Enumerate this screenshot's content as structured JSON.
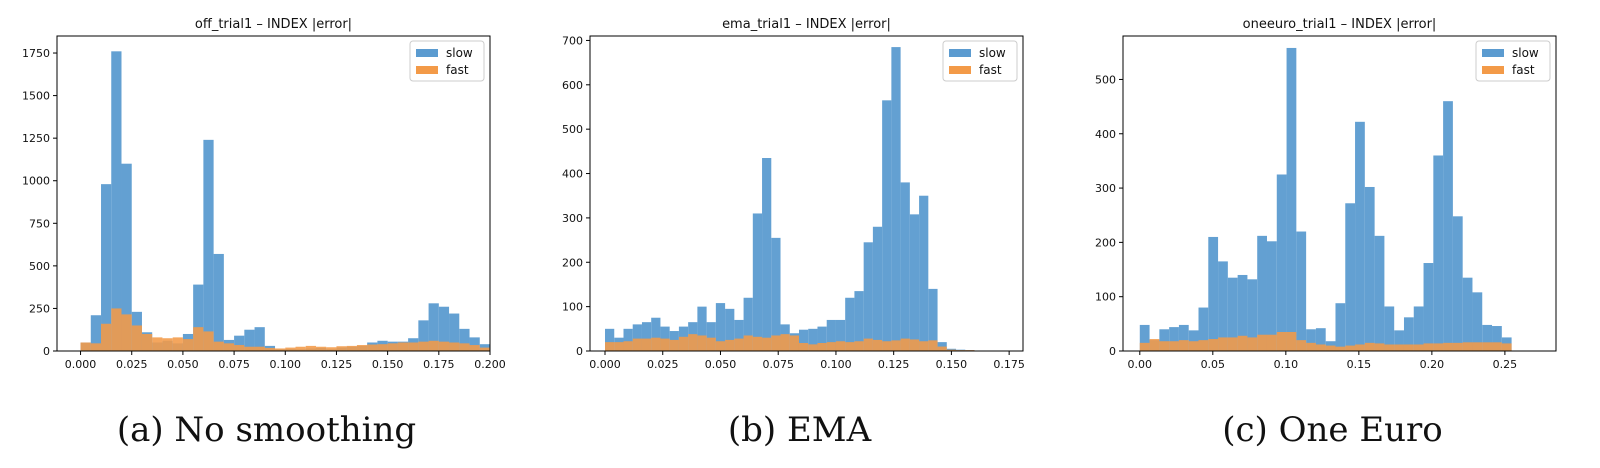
{
  "colors": {
    "slow": "#5b9bd0",
    "fast": "#f39a48",
    "slow_edge": "#5b9bd0",
    "fast_edge": "#f39a48"
  },
  "chart_data": [
    {
      "type": "bar",
      "title": "off_trial1 – INDEX |error|",
      "caption": "(a) No smoothing",
      "x_bin_width": 0.005,
      "xlim": [
        -0.0115,
        0.2
      ],
      "ylim": [
        0,
        1850
      ],
      "xticks": [
        0.0,
        0.025,
        0.05,
        0.075,
        0.1,
        0.125,
        0.15,
        0.175,
        0.2
      ],
      "xticklabels": [
        "0.000",
        "0.025",
        "0.050",
        "0.075",
        "0.100",
        "0.125",
        "0.150",
        "0.175",
        "0.200"
      ],
      "yticks": [
        0,
        250,
        500,
        750,
        1000,
        1250,
        1500,
        1750
      ],
      "yticklabels": [
        "0",
        "250",
        "500",
        "750",
        "1000",
        "1250",
        "1500",
        "1750"
      ],
      "legend": "top-right",
      "series": [
        {
          "name": "slow",
          "x0": 0.0,
          "values": [
            50,
            210,
            980,
            1760,
            1100,
            230,
            110,
            50,
            60,
            45,
            100,
            390,
            1240,
            570,
            65,
            90,
            125,
            140,
            30,
            10,
            12,
            10,
            15,
            18,
            10,
            20,
            25,
            30,
            50,
            60,
            55,
            55,
            75,
            180,
            280,
            260,
            220,
            130,
            80,
            40
          ]
        },
        {
          "name": "fast",
          "x0": 0.0,
          "values": [
            50,
            45,
            160,
            250,
            215,
            150,
            100,
            80,
            75,
            80,
            70,
            140,
            115,
            55,
            45,
            35,
            25,
            25,
            18,
            15,
            20,
            25,
            30,
            25,
            22,
            28,
            30,
            35,
            38,
            40,
            45,
            50,
            50,
            55,
            60,
            55,
            50,
            45,
            35,
            20
          ]
        }
      ]
    },
    {
      "type": "bar",
      "title": "ema_trial1 – INDEX |error|",
      "caption": "(b) EMA",
      "x_bin_width": 0.004,
      "xlim": [
        -0.0065,
        0.181
      ],
      "ylim": [
        0,
        710
      ],
      "xticks": [
        0.0,
        0.025,
        0.05,
        0.075,
        0.1,
        0.125,
        0.15,
        0.175
      ],
      "xticklabels": [
        "0.000",
        "0.025",
        "0.050",
        "0.075",
        "0.100",
        "0.125",
        "0.150",
        "0.175"
      ],
      "yticks": [
        0,
        100,
        200,
        300,
        400,
        500,
        600,
        700
      ],
      "yticklabels": [
        "0",
        "100",
        "200",
        "300",
        "400",
        "500",
        "600",
        "700"
      ],
      "legend": "top-right",
      "series": [
        {
          "name": "slow",
          "x0": 0.0,
          "values": [
            50,
            30,
            50,
            60,
            65,
            75,
            55,
            45,
            55,
            65,
            100,
            65,
            108,
            95,
            70,
            120,
            310,
            435,
            255,
            60,
            40,
            48,
            50,
            55,
            70,
            70,
            120,
            135,
            245,
            280,
            565,
            685,
            380,
            308,
            350,
            140,
            20,
            5,
            3,
            2
          ]
        },
        {
          "name": "fast",
          "x0": 0.0,
          "values": [
            20,
            20,
            22,
            28,
            28,
            30,
            28,
            25,
            32,
            38,
            35,
            30,
            22,
            25,
            28,
            35,
            32,
            30,
            35,
            38,
            35,
            18,
            15,
            18,
            20,
            22,
            20,
            22,
            28,
            25,
            22,
            24,
            28,
            26,
            22,
            24,
            10,
            3,
            2,
            2
          ]
        }
      ]
    },
    {
      "type": "bar",
      "title": "oneeuro_trial1 – INDEX |error|",
      "caption": "(c) One Euro",
      "x_bin_width": 0.0067,
      "xlim": [
        -0.0115,
        0.285
      ],
      "ylim": [
        0,
        580
      ],
      "xticks": [
        0.0,
        0.05,
        0.1,
        0.15,
        0.2,
        0.25
      ],
      "xticklabels": [
        "0.00",
        "0.05",
        "0.10",
        "0.15",
        "0.20",
        "0.25"
      ],
      "yticks": [
        0,
        100,
        200,
        300,
        400,
        500
      ],
      "yticklabels": [
        "0",
        "100",
        "200",
        "300",
        "400",
        "500"
      ],
      "legend": "top-right",
      "series": [
        {
          "name": "slow",
          "x0": 0.0,
          "values": [
            48,
            20,
            40,
            44,
            48,
            38,
            80,
            210,
            165,
            135,
            140,
            132,
            212,
            202,
            325,
            558,
            220,
            40,
            42,
            18,
            88,
            272,
            422,
            302,
            212,
            82,
            38,
            62,
            82,
            162,
            360,
            460,
            248,
            135,
            108,
            48,
            46,
            25
          ]
        },
        {
          "name": "fast",
          "x0": 0.0,
          "values": [
            15,
            22,
            18,
            18,
            20,
            18,
            20,
            22,
            25,
            25,
            28,
            25,
            30,
            30,
            35,
            35,
            20,
            15,
            12,
            10,
            8,
            10,
            12,
            15,
            14,
            12,
            12,
            12,
            12,
            14,
            14,
            15,
            15,
            16,
            16,
            16,
            16,
            14
          ]
        }
      ]
    }
  ]
}
